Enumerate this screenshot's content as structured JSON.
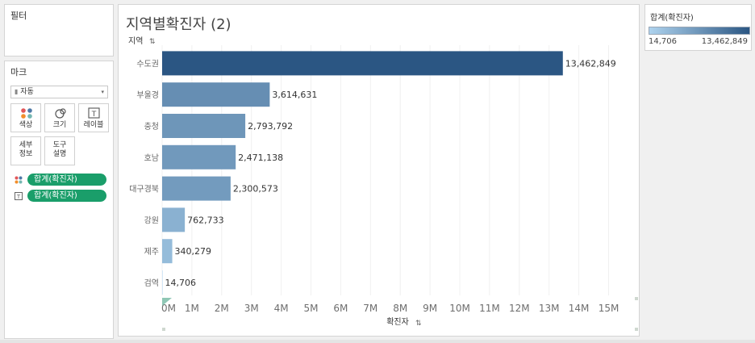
{
  "filters": {
    "title": "필터"
  },
  "marks": {
    "title": "마크",
    "mark_type": "자동",
    "buttons": {
      "color": "색상",
      "size": "크기",
      "label": "레이블",
      "detail_1": "세부",
      "detail_2": "정보",
      "tooltip_1": "도구",
      "tooltip_2": "설명"
    },
    "pills": [
      "합계(확진자)",
      "합계(확진자)"
    ]
  },
  "sheet": {
    "title": "지역별확진자 (2)"
  },
  "legend": {
    "title": "합계(확진자)",
    "min": "14,706",
    "max": "13,462,849",
    "color_low": "#aed3ee",
    "color_high": "#2b5683"
  },
  "chart_data": {
    "type": "bar",
    "orientation": "horizontal",
    "title": "지역별확진자 (2)",
    "ylabel": "지역",
    "xlabel": "확진자",
    "categories": [
      "수도권",
      "부울경",
      "충청",
      "호남",
      "대구경북",
      "강원",
      "제주",
      "검역"
    ],
    "values": [
      13462849,
      3614631,
      2793792,
      2471138,
      2300573,
      762733,
      340279,
      14706
    ],
    "data_labels": [
      "13,462,849",
      "3,614,631",
      "2,793,792",
      "2,471,138",
      "2,300,573",
      "762,733",
      "340,279",
      "14,706"
    ],
    "x_ticks": [
      0,
      1000000,
      2000000,
      3000000,
      4000000,
      5000000,
      6000000,
      7000000,
      8000000,
      9000000,
      10000000,
      11000000,
      12000000,
      13000000,
      14000000,
      15000000
    ],
    "x_tick_labels": [
      "0M",
      "1M",
      "2M",
      "3M",
      "4M",
      "5M",
      "6M",
      "7M",
      "8M",
      "9M",
      "10M",
      "11M",
      "12M",
      "13M",
      "14M",
      "15M"
    ],
    "xlim": [
      0,
      15400000
    ],
    "grid": true,
    "color_low": "#aed3ee",
    "color_high": "#2b5683"
  }
}
